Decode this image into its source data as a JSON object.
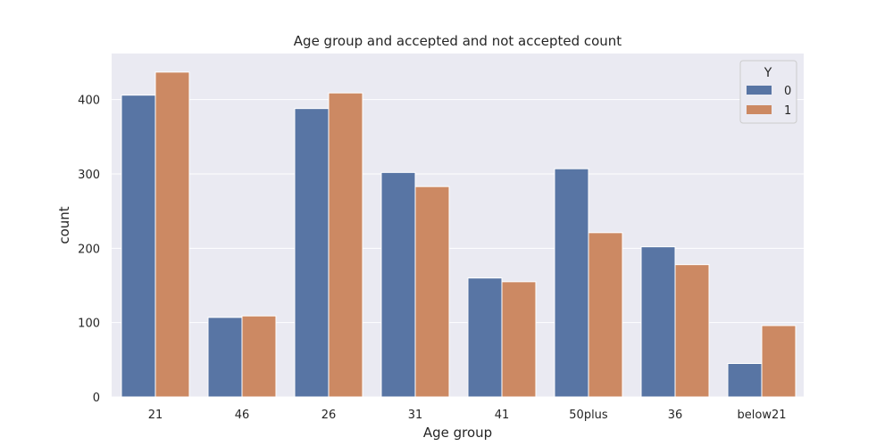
{
  "chart_data": {
    "type": "bar",
    "title": "Age group and accepted and not accepted count",
    "xlabel": "Age group",
    "ylabel": "count",
    "categories": [
      "21",
      "46",
      "26",
      "31",
      "41",
      "50plus",
      "36",
      "below21"
    ],
    "series": [
      {
        "name": "0",
        "color": "#5875a4",
        "values": [
          406,
          107,
          388,
          302,
          160,
          307,
          202,
          45
        ]
      },
      {
        "name": "1",
        "color": "#cc8963",
        "values": [
          437,
          109,
          409,
          283,
          155,
          221,
          178,
          96
        ]
      }
    ],
    "ylim": [
      0,
      462
    ],
    "yticks": [
      0,
      100,
      200,
      300,
      400
    ],
    "grid": true,
    "legend": {
      "title": "Y",
      "placement": "top-right"
    },
    "background": "#eaeaf2",
    "grid_color": "#ffffff"
  }
}
